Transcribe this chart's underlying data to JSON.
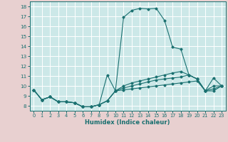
{
  "xlabel": "Humidex (Indice chaleur)",
  "bg_color": "#cce8e8",
  "outer_color": "#e8d0d0",
  "line_color": "#1a7070",
  "grid_color": "#ffffff",
  "xlim": [
    -0.5,
    23.5
  ],
  "ylim": [
    7.5,
    18.5
  ],
  "xticks": [
    0,
    1,
    2,
    3,
    4,
    5,
    6,
    7,
    8,
    9,
    10,
    11,
    12,
    13,
    14,
    15,
    16,
    17,
    18,
    19,
    20,
    21,
    22,
    23
  ],
  "yticks": [
    8,
    9,
    10,
    11,
    12,
    13,
    14,
    15,
    16,
    17,
    18
  ],
  "series": [
    [
      9.6,
      8.6,
      8.9,
      8.4,
      8.4,
      8.3,
      7.9,
      7.9,
      8.1,
      11.1,
      9.5,
      16.9,
      17.6,
      17.8,
      17.75,
      17.8,
      16.6,
      13.9,
      13.7,
      11.1,
      10.7,
      9.5,
      10.8,
      10.0
    ],
    [
      9.6,
      8.6,
      8.9,
      8.4,
      8.4,
      8.3,
      7.9,
      7.9,
      8.1,
      8.5,
      9.5,
      10.0,
      10.3,
      10.5,
      10.7,
      10.9,
      11.1,
      11.3,
      11.45,
      11.1,
      10.7,
      9.5,
      10.0,
      10.0
    ],
    [
      9.6,
      8.6,
      8.9,
      8.4,
      8.4,
      8.3,
      7.9,
      7.9,
      8.1,
      8.5,
      9.5,
      9.8,
      10.0,
      10.2,
      10.4,
      10.6,
      10.7,
      10.8,
      10.9,
      11.1,
      10.7,
      9.5,
      9.7,
      10.0
    ],
    [
      9.6,
      8.6,
      8.9,
      8.4,
      8.4,
      8.3,
      7.9,
      7.9,
      8.1,
      8.5,
      9.5,
      9.6,
      9.7,
      9.8,
      9.9,
      10.0,
      10.1,
      10.2,
      10.3,
      10.4,
      10.5,
      9.5,
      9.5,
      10.0
    ]
  ]
}
